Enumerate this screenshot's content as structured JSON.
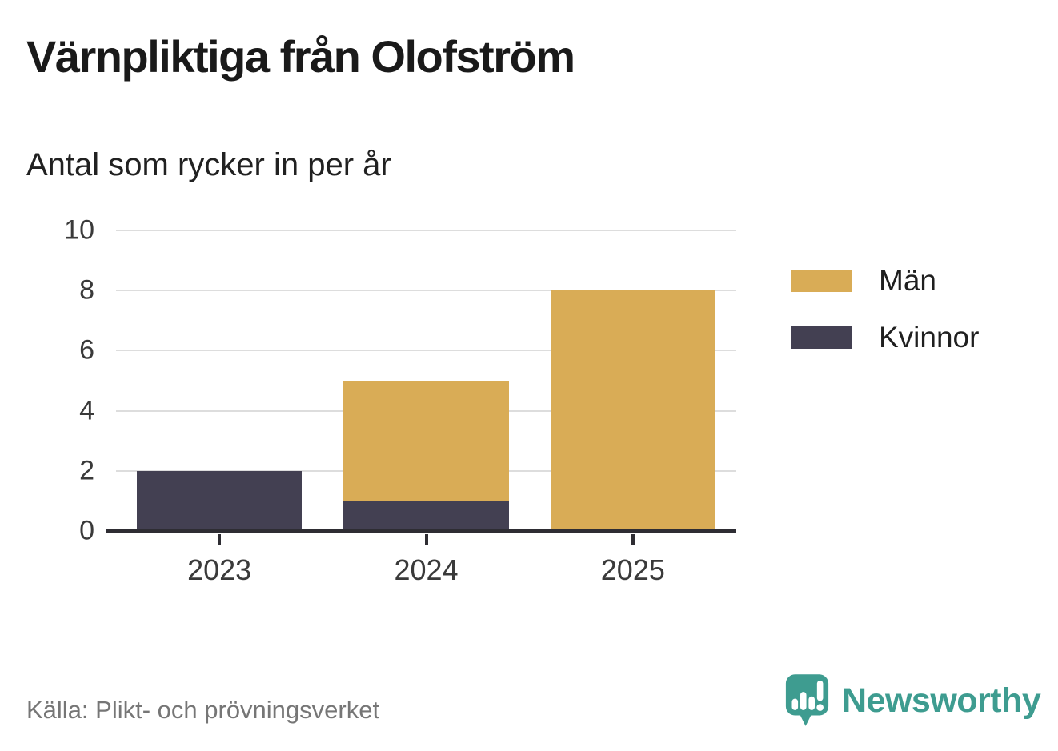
{
  "source": "Källa: Plikt- och prövningsverket",
  "branding": {
    "name": "Newsworthy",
    "logo_icon": "newsworthy-speech-bubble-bar-chart-icon",
    "color": "#3E9C90"
  },
  "colors": {
    "axis": "#2E2D33",
    "grid": "#DDDDDD",
    "tick_text": "#3A3A3A",
    "title_text": "#1A1A1A",
    "source_text": "#767676"
  },
  "chart_data": {
    "type": "bar",
    "stacked": true,
    "title": "Värnpliktiga från Olofström",
    "subtitle": "Antal som rycker in per år",
    "categories": [
      "2023",
      "2024",
      "2025"
    ],
    "series": [
      {
        "name": "Män",
        "color": "#D9AC56",
        "values": [
          0,
          4,
          8
        ]
      },
      {
        "name": "Kvinnor",
        "color": "#434052",
        "values": [
          2,
          1,
          0
        ]
      }
    ],
    "stack_totals": [
      2,
      5,
      8
    ],
    "ylim": [
      0,
      10
    ],
    "yticks": [
      0,
      2,
      4,
      6,
      8,
      10
    ],
    "xlabel": "",
    "ylabel": "",
    "grid": true,
    "legend_position": "right",
    "bar_width_fraction": 0.8
  }
}
